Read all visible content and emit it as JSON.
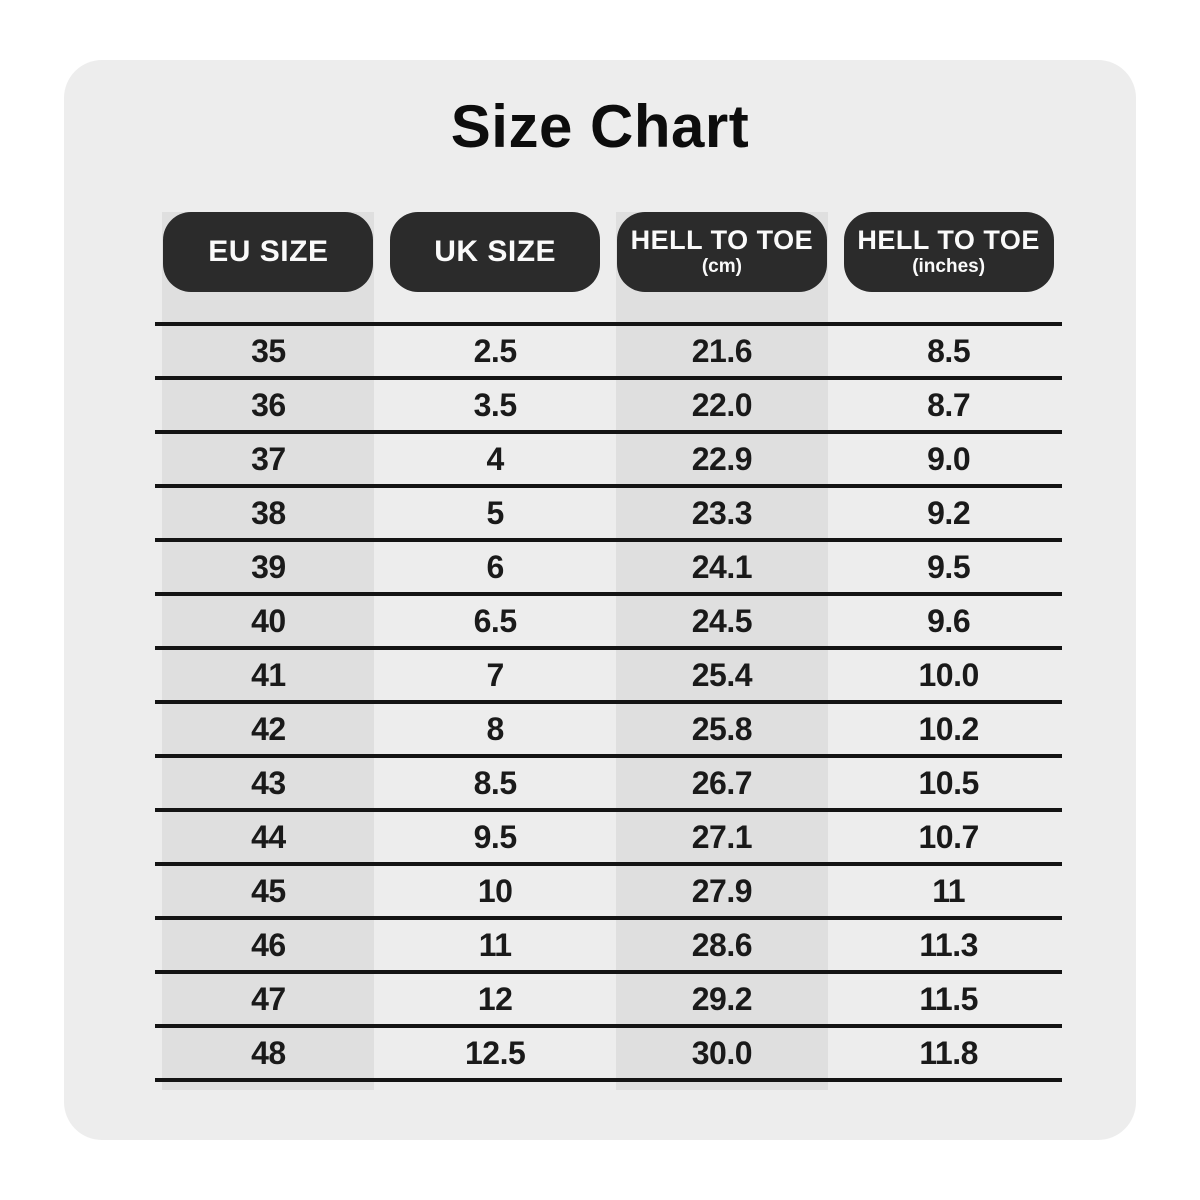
{
  "colors": {
    "page_bg": "#ffffff",
    "card_bg": "#ededed",
    "band_bg": "#dfdfdf",
    "pill_bg": "#2b2b2b",
    "pill_text": "#fafafa",
    "line": "#141414",
    "text": "#1a1a1a",
    "title_color": "#0d0d0d"
  },
  "chart_data": {
    "type": "table",
    "title": "Size Chart",
    "columns": [
      {
        "label": "EU SIZE",
        "sub": ""
      },
      {
        "label": "UK SIZE",
        "sub": ""
      },
      {
        "label": "HELL TO TOE",
        "sub": "(cm)"
      },
      {
        "label": "HELL TO TOE",
        "sub": "(inches)"
      }
    ],
    "rows": [
      [
        "35",
        "2.5",
        "21.6",
        "8.5"
      ],
      [
        "36",
        "3.5",
        "22.0",
        "8.7"
      ],
      [
        "37",
        "4",
        "22.9",
        "9.0"
      ],
      [
        "38",
        "5",
        "23.3",
        "9.2"
      ],
      [
        "39",
        "6",
        "24.1",
        "9.5"
      ],
      [
        "40",
        "6.5",
        "24.5",
        "9.6"
      ],
      [
        "41",
        "7",
        "25.4",
        "10.0"
      ],
      [
        "42",
        "8",
        "25.8",
        "10.2"
      ],
      [
        "43",
        "8.5",
        "26.7",
        "10.5"
      ],
      [
        "44",
        "9.5",
        "27.1",
        "10.7"
      ],
      [
        "45",
        "10",
        "27.9",
        "11"
      ],
      [
        "46",
        "11",
        "28.6",
        "11.3"
      ],
      [
        "47",
        "12",
        "29.2",
        "11.5"
      ],
      [
        "48",
        "12.5",
        "30.0",
        "11.8"
      ]
    ]
  }
}
